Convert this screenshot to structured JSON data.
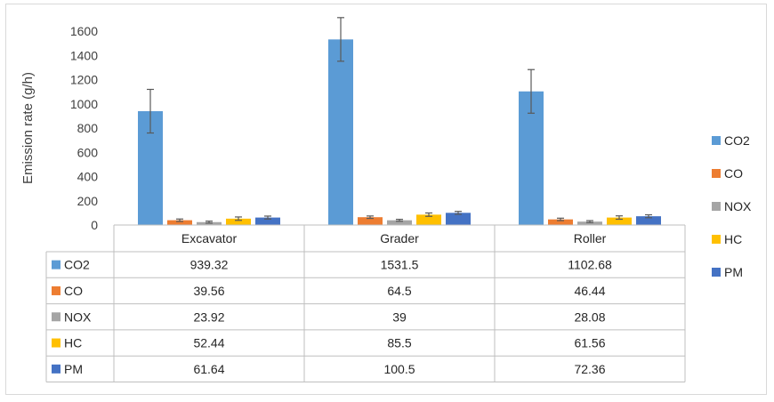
{
  "chart_data": {
    "type": "bar",
    "ylabel": "Emission rate (g/h)",
    "ylim": [
      0,
      1600
    ],
    "yticks": [
      0,
      200,
      400,
      600,
      800,
      1000,
      1200,
      1400,
      1600
    ],
    "categories": [
      "Excavator",
      "Grader",
      "Roller"
    ],
    "grid": false,
    "legend_position": "right",
    "data_table": true,
    "error_bars": true,
    "series": [
      {
        "name": "CO2",
        "color": "#5b9bd5",
        "values": [
          939.32,
          1531.5,
          1102.68
        ],
        "error": [
          180,
          180,
          180
        ]
      },
      {
        "name": "CO",
        "color": "#ed7d31",
        "values": [
          39.56,
          64.5,
          46.44
        ],
        "error": [
          10,
          10,
          10
        ]
      },
      {
        "name": "NOX",
        "color": "#a5a5a5",
        "values": [
          23.92,
          39,
          28.08
        ],
        "error": [
          8,
          8,
          8
        ]
      },
      {
        "name": "HC",
        "color": "#ffc000",
        "values": [
          52.44,
          85.5,
          61.56
        ],
        "error": [
          14,
          14,
          14
        ]
      },
      {
        "name": "PM",
        "color": "#4472c4",
        "values": [
          61.64,
          100.5,
          72.36
        ],
        "error": [
          12,
          12,
          12
        ]
      }
    ],
    "table_values": [
      [
        "939.32",
        "1531.5",
        "1102.68"
      ],
      [
        "39.56",
        "64.5",
        "46.44"
      ],
      [
        "23.92",
        "39",
        "28.08"
      ],
      [
        "52.44",
        "85.5",
        "61.56"
      ],
      [
        "61.64",
        "100.5",
        "72.36"
      ]
    ]
  }
}
